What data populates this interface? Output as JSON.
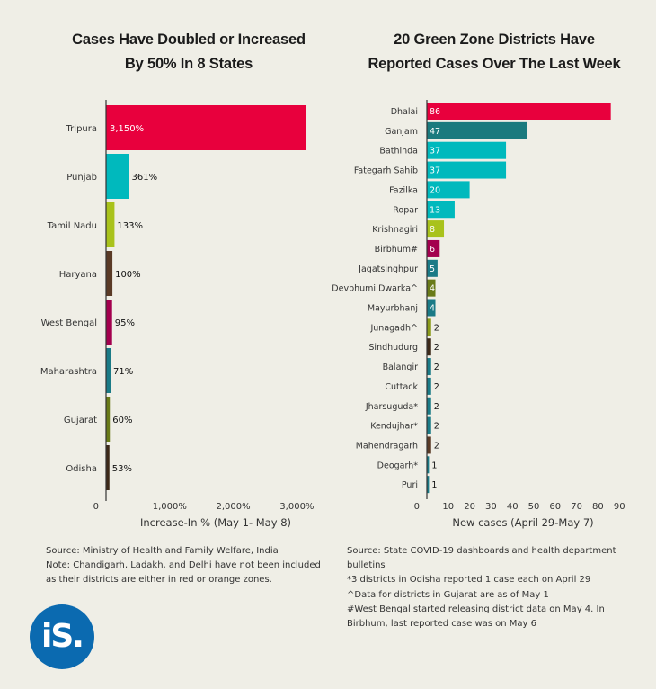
{
  "chart_data": [
    {
      "type": "bar",
      "orientation": "horizontal",
      "title": "Cases Have Doubled or Increased By 50% In 8 States",
      "title_lines": [
        "Cases Have Doubled or Increased",
        "By 50% In 8 States"
      ],
      "xlabel": "Increase-In % (May 1- May 8)",
      "xlim": [
        0,
        3500
      ],
      "xticks": [
        0,
        1000,
        2000,
        3000
      ],
      "xtick_labels": [
        "0",
        "1,000%",
        "2,000%",
        "3,000%"
      ],
      "categories": [
        "Tripura",
        "Punjab",
        "Tamil Nadu",
        "Haryana",
        "West Bengal",
        "Maharashtra",
        "Gujarat",
        "Odisha"
      ],
      "values": [
        3150,
        361,
        133,
        100,
        95,
        71,
        60,
        53
      ],
      "value_labels": [
        "3,150%",
        "361%",
        "133%",
        "100%",
        "95%",
        "71%",
        "60%",
        "53%"
      ],
      "colors": [
        "#e8003d",
        "#00b9bd",
        "#a9c21b",
        "#5a3a26",
        "#a3004e",
        "#1a7a86",
        "#697a18",
        "#3d2918"
      ]
    },
    {
      "type": "bar",
      "orientation": "horizontal",
      "title": "20 Green Zone Districts Have Reported Cases Over The Last Week",
      "title_lines": [
        "20 Green Zone Districts Have",
        "Reported Cases Over The Last Week"
      ],
      "xlabel": "New cases (April 29-May 7)",
      "xlim": [
        0,
        90
      ],
      "xticks": [
        0,
        10,
        20,
        30,
        40,
        50,
        60,
        70,
        80,
        90
      ],
      "xtick_labels": [
        "0",
        "10",
        "20",
        "30",
        "40",
        "50",
        "60",
        "70",
        "80",
        "90"
      ],
      "categories": [
        "Dhalai",
        "Ganjam",
        "Bathinda",
        "Fategarh Sahib",
        "Fazilka",
        "Ropar",
        "Krishnagiri",
        "Birbhum#",
        "Jagatsinghpur",
        "Devbhumi Dwarka^",
        "Mayurbhanj",
        "Junagadh^",
        "Sindhudurg",
        "Balangir",
        "Cuttack",
        "Jharsuguda*",
        "Kendujhar*",
        "Mahendragarh",
        "Deogarh*",
        "Puri"
      ],
      "values": [
        86,
        47,
        37,
        37,
        20,
        13,
        8,
        6,
        5,
        4,
        4,
        2,
        2,
        2,
        2,
        2,
        2,
        2,
        1,
        1
      ],
      "colors": [
        "#e8003d",
        "#1a7a7e",
        "#00b9bd",
        "#00b9bd",
        "#00b9bd",
        "#00b9bd",
        "#a9c21b",
        "#a3004e",
        "#1a7a86",
        "#697a18",
        "#1a7a86",
        "#8a9a1a",
        "#3d2918",
        "#1a7a86",
        "#1a7a86",
        "#1a7a86",
        "#1a7a86",
        "#5a3a26",
        "#1a7a86",
        "#1a7a86"
      ]
    }
  ],
  "notes_left": [
    "Source: Ministry of Health and Family Welfare, India",
    "Note: Chandigarh, Ladakh, and Delhi have not been included as their districts are either in red or orange zones."
  ],
  "notes_right": [
    "Source: State COVID-19 dashboards and health department bulletins",
    "*3 districts in Odisha reported 1 case each on April 29",
    "^Data for districts in Gujarat are as of May 1",
    "#West Bengal started releasing district data on May 4. In Birbhum, last reported case was on May 6"
  ],
  "logo_text": "iS.",
  "colors": {
    "background": "#efeee6",
    "axis": "#333333",
    "logo": "#0b6ab0"
  }
}
